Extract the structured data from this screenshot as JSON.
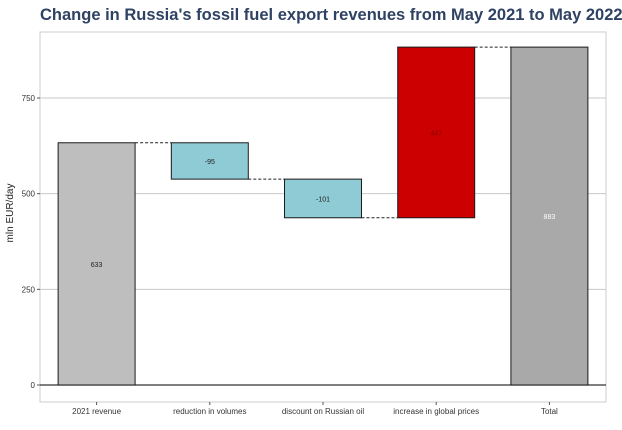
{
  "chart_data": {
    "type": "bar",
    "subtype": "waterfall",
    "title": "Change in Russia's fossil fuel export revenues from May 2021 to May 2022",
    "xlabel": "",
    "ylabel": "mln EUR/day",
    "ylim": [
      -30,
      920
    ],
    "yticks": [
      0,
      250,
      500,
      750
    ],
    "grid": true,
    "categories": [
      "2021 revenue",
      "reduction in volumes",
      "discount on Russian oil",
      "increase in global prices",
      "Total"
    ],
    "bars": [
      {
        "label": "2021 revenue",
        "start": 0,
        "end": 633,
        "value_label": "633",
        "color": "#bebebe",
        "label_color": "#222222"
      },
      {
        "label": "reduction in volumes",
        "start": 633,
        "end": 538,
        "value_label": "-95",
        "color": "#8fcbd4",
        "label_color": "#222222"
      },
      {
        "label": "discount on Russian oil",
        "start": 538,
        "end": 437,
        "value_label": "-101",
        "color": "#8fcbd4",
        "label_color": "#222222"
      },
      {
        "label": "increase in global prices",
        "start": 437,
        "end": 883,
        "value_label": "447",
        "color": "#cc0000",
        "label_color": "#8b0000"
      },
      {
        "label": "Total",
        "start": 0,
        "end": 883,
        "value_label": "883",
        "color": "#a9a9a9",
        "label_color": "#ffffff"
      }
    ]
  }
}
